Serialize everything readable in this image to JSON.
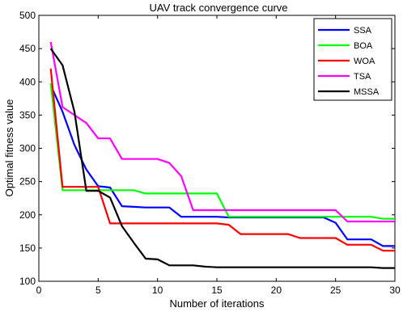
{
  "chart_data": {
    "type": "line",
    "title": "UAV track convergence curve",
    "xlabel": "Number of iterations",
    "ylabel": "Optimal fitness value",
    "xlim": [
      0,
      30
    ],
    "ylim": [
      100,
      500
    ],
    "xticks": [
      "0",
      "5",
      "10",
      "15",
      "20",
      "25",
      "30"
    ],
    "yticks": [
      "100",
      "150",
      "200",
      "250",
      "300",
      "350",
      "400",
      "450",
      "500"
    ],
    "grid": false,
    "legend_position": "top-right",
    "series": [
      {
        "name": "SSA",
        "color": "#0000ff",
        "x": [
          1,
          2,
          3,
          4,
          5,
          6,
          7,
          8,
          9,
          10,
          11,
          12,
          13,
          14,
          15,
          16,
          17,
          18,
          19,
          20,
          21,
          22,
          23,
          24,
          25,
          26,
          27,
          28,
          29,
          30
        ],
        "y": [
          395,
          355,
          305,
          268,
          243,
          241,
          213,
          212,
          211,
          211,
          211,
          197,
          197,
          197,
          197,
          196,
          196,
          196,
          196,
          196,
          196,
          196,
          196,
          196,
          188,
          163,
          163,
          163,
          153,
          153
        ]
      },
      {
        "name": "BOA",
        "color": "#00ff00",
        "x": [
          1,
          2,
          3,
          4,
          5,
          6,
          7,
          8,
          9,
          10,
          11,
          12,
          13,
          14,
          15,
          16,
          17,
          18,
          19,
          20,
          21,
          22,
          23,
          24,
          25,
          26,
          27,
          28,
          29,
          30
        ],
        "y": [
          398,
          237,
          237,
          237,
          237,
          237,
          237,
          237,
          232,
          232,
          232,
          232,
          232,
          232,
          232,
          197,
          197,
          197,
          197,
          197,
          197,
          197,
          197,
          197,
          197,
          197,
          197,
          197,
          194,
          194
        ]
      },
      {
        "name": "WOA",
        "color": "#ff0000",
        "x": [
          1,
          2,
          3,
          4,
          5,
          6,
          7,
          8,
          9,
          10,
          11,
          12,
          13,
          14,
          15,
          16,
          17,
          18,
          19,
          20,
          21,
          22,
          23,
          24,
          25,
          26,
          27,
          28,
          29,
          30
        ],
        "y": [
          420,
          242,
          242,
          242,
          242,
          187,
          187,
          187,
          187,
          187,
          187,
          187,
          187,
          187,
          187,
          185,
          171,
          171,
          171,
          171,
          171,
          165,
          165,
          165,
          165,
          155,
          155,
          155,
          146,
          146
        ]
      },
      {
        "name": "TSA",
        "color": "#ff00ff",
        "x": [
          1,
          2,
          3,
          4,
          5,
          6,
          7,
          8,
          9,
          10,
          11,
          12,
          13,
          14,
          15,
          16,
          17,
          18,
          19,
          20,
          21,
          22,
          23,
          24,
          25,
          26,
          27,
          28,
          29,
          30
        ],
        "y": [
          460,
          362,
          350,
          338,
          315,
          315,
          284,
          284,
          284,
          284,
          278,
          258,
          207,
          207,
          207,
          207,
          207,
          207,
          207,
          207,
          207,
          207,
          207,
          207,
          207,
          190,
          190,
          190,
          190,
          190
        ]
      },
      {
        "name": "MSSA",
        "color": "#000000",
        "x": [
          1,
          2,
          3,
          4,
          5,
          6,
          7,
          8,
          9,
          10,
          11,
          12,
          13,
          14,
          15,
          16,
          17,
          18,
          19,
          20,
          21,
          22,
          23,
          24,
          25,
          26,
          27,
          28,
          29,
          30
        ],
        "y": [
          450,
          425,
          355,
          236,
          236,
          226,
          183,
          158,
          134,
          133,
          124,
          124,
          124,
          122,
          121,
          121,
          121,
          121,
          121,
          121,
          121,
          121,
          121,
          121,
          121,
          121,
          121,
          121,
          120,
          120
        ]
      }
    ]
  }
}
